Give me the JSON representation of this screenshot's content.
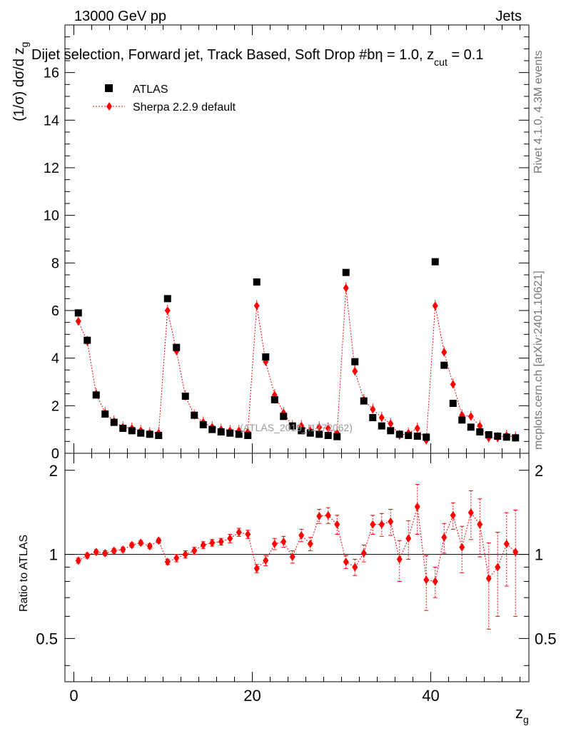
{
  "header": {
    "energy_label": "13000 GeV pp",
    "category_label": "Jets",
    "plot_title": "Dijet selection, Forward jet, Track Based, Soft Drop #b",
    "title_eta": "η = 1.0, z",
    "title_cut": "cut",
    "title_tail": " = 0.1"
  },
  "side_labels": {
    "rivet": "Rivet 4.1.0,  4.3M events",
    "mcplots": "mcplots.cern.ch [arXiv:2401.10621]"
  },
  "watermark": "(ATLAS_2019_I1772062)",
  "chart_data": [
    {
      "panel": "main",
      "type": "scatter",
      "title": "Dijet selection, Forward jet, Track Based, Soft Drop #bη = 1.0, z_cut = 0.1",
      "xlabel": "z",
      "xlabel_sub": "g",
      "ylabel": "(1/σ) dσ/d z",
      "ylabel_sub": "g",
      "xlim": [
        -1,
        51
      ],
      "ylim": [
        0,
        18
      ],
      "x_ticks": [
        0,
        20,
        40
      ],
      "y_ticks": [
        0,
        2,
        4,
        6,
        8,
        10,
        12,
        14,
        16
      ],
      "legend_position": "top-left",
      "x": [
        0.5,
        1.5,
        2.5,
        3.5,
        4.5,
        5.5,
        6.5,
        7.5,
        8.5,
        9.5,
        10.5,
        11.5,
        12.5,
        13.5,
        14.5,
        15.5,
        16.5,
        17.5,
        18.5,
        19.5,
        20.5,
        21.5,
        22.5,
        23.5,
        24.5,
        25.5,
        26.5,
        27.5,
        28.5,
        29.5,
        30.5,
        31.5,
        32.5,
        33.5,
        34.5,
        35.5,
        36.5,
        37.5,
        38.5,
        39.5,
        40.5,
        41.5,
        42.5,
        43.5,
        44.5,
        45.5,
        46.5,
        47.5,
        48.5,
        49.5
      ],
      "series": [
        {
          "name": "ATLAS",
          "marker": "square",
          "color": "#000000",
          "values": [
            5.9,
            4.75,
            2.45,
            1.65,
            1.3,
            1.05,
            0.95,
            0.85,
            0.8,
            0.75,
            6.5,
            4.45,
            2.4,
            1.6,
            1.2,
            1.0,
            0.9,
            0.85,
            0.8,
            0.75,
            7.2,
            4.05,
            2.25,
            1.55,
            1.15,
            0.95,
            0.85,
            0.8,
            0.75,
            0.7,
            7.6,
            3.85,
            2.2,
            1.5,
            1.15,
            0.95,
            0.8,
            0.75,
            0.72,
            0.68,
            8.05,
            3.7,
            2.1,
            1.4,
            1.1,
            0.9,
            0.78,
            0.72,
            0.68,
            0.65
          ]
        },
        {
          "name": "Sherpa 2.2.9 default",
          "marker": "diamond",
          "color": "#ff0000",
          "values": [
            5.55,
            4.7,
            2.5,
            1.7,
            1.35,
            1.1,
            1.05,
            0.95,
            0.85,
            0.85,
            6.0,
            4.3,
            2.4,
            1.6,
            1.3,
            1.1,
            1.0,
            0.95,
            0.95,
            0.9,
            6.2,
            3.85,
            2.45,
            1.7,
            1.15,
            1.15,
            0.95,
            1.1,
            1.05,
            0.85,
            6.95,
            3.45,
            2.25,
            1.85,
            1.5,
            1.25,
            0.75,
            0.85,
            1.05,
            0.55,
            6.2,
            4.25,
            2.9,
            1.6,
            1.55,
            1.15,
            0.65,
            0.65,
            0.75,
            0.68
          ]
        }
      ]
    },
    {
      "panel": "ratio",
      "type": "scatter",
      "ylabel": "Ratio to ATLAS",
      "xlim": [
        -1,
        51
      ],
      "ylim": [
        0.35,
        2.3
      ],
      "log_y": true,
      "y_ticks": [
        0.5,
        1,
        2
      ],
      "reference_line": 1,
      "x": [
        0.5,
        1.5,
        2.5,
        3.5,
        4.5,
        5.5,
        6.5,
        7.5,
        8.5,
        9.5,
        10.5,
        11.5,
        12.5,
        13.5,
        14.5,
        15.5,
        16.5,
        17.5,
        18.5,
        19.5,
        20.5,
        21.5,
        22.5,
        23.5,
        24.5,
        25.5,
        26.5,
        27.5,
        28.5,
        29.5,
        30.5,
        31.5,
        32.5,
        33.5,
        34.5,
        35.5,
        36.5,
        37.5,
        38.5,
        39.5,
        40.5,
        41.5,
        42.5,
        43.5,
        44.5,
        45.5,
        46.5,
        47.5,
        48.5,
        49.5
      ],
      "series": [
        {
          "name": "Sherpa 2.2.9 default / ATLAS",
          "color": "#ff0000",
          "values": [
            0.95,
            0.99,
            1.02,
            1.01,
            1.03,
            1.04,
            1.08,
            1.1,
            1.07,
            1.12,
            0.94,
            0.97,
            1.0,
            1.03,
            1.08,
            1.1,
            1.11,
            1.14,
            1.2,
            1.18,
            0.89,
            0.95,
            1.09,
            1.11,
            0.98,
            1.17,
            1.09,
            1.37,
            1.38,
            1.28,
            0.94,
            0.9,
            1.01,
            1.28,
            1.28,
            1.31,
            0.96,
            1.14,
            1.48,
            0.81,
            0.8,
            1.15,
            1.38,
            1.06,
            1.41,
            1.28,
            0.82,
            0.9,
            1.09,
            1.02
          ],
          "errors": [
            0.02,
            0.02,
            0.02,
            0.02,
            0.02,
            0.02,
            0.02,
            0.02,
            0.02,
            0.02,
            0.02,
            0.03,
            0.03,
            0.03,
            0.03,
            0.03,
            0.03,
            0.04,
            0.04,
            0.04,
            0.03,
            0.04,
            0.05,
            0.05,
            0.05,
            0.06,
            0.06,
            0.08,
            0.09,
            0.1,
            0.05,
            0.06,
            0.07,
            0.1,
            0.12,
            0.14,
            0.16,
            0.18,
            0.3,
            0.18,
            0.1,
            0.14,
            0.15,
            0.2,
            0.28,
            0.3,
            0.28,
            0.3,
            0.32,
            0.42
          ]
        }
      ]
    }
  ]
}
